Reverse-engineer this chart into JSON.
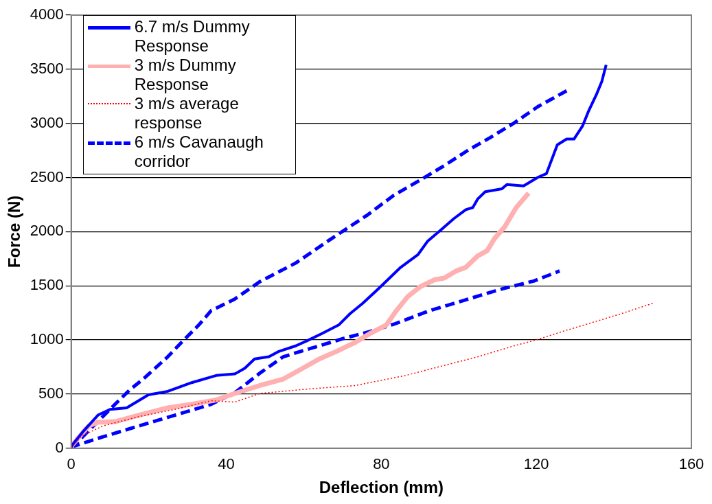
{
  "chart_data": {
    "type": "line",
    "xlabel": "Deflection (mm)",
    "ylabel": "Force (N)",
    "xlim": [
      0,
      160
    ],
    "xticks": [
      0,
      40,
      80,
      120,
      160
    ],
    "ylim": [
      0,
      4000
    ],
    "yticks": [
      0,
      500,
      1000,
      1500,
      2000,
      2500,
      3000,
      3500,
      4000
    ],
    "grid": "y",
    "legend": "top left",
    "marker": "none",
    "series": [
      {
        "name": "6.7 m/s Dummy Response",
        "color": "#0000ff",
        "line_style": "solid",
        "x": [
          0,
          0.2,
          3.2,
          6.9,
          10.0,
          14.3,
          19.9,
          24.9,
          31.1,
          37.4,
          42.2,
          44.8,
          47.3,
          51.0,
          53.4,
          57.9,
          60.8,
          64.6,
          69.0,
          72.0,
          75.2,
          79.4,
          85.0,
          89.5,
          91.9,
          95.6,
          98.8,
          101.8,
          103.6,
          104.9,
          106.8,
          111.1,
          112.4,
          116.7,
          120.4,
          122.6,
          125.4,
          127.8,
          129.7,
          131.9,
          133.4,
          135.6,
          136.9,
          138.0
        ],
        "values": [
          0,
          27,
          160,
          306,
          359,
          373,
          493,
          526,
          606,
          672,
          686,
          739,
          825,
          845,
          892,
          945,
          992,
          1058,
          1138,
          1245,
          1338,
          1478,
          1671,
          1790,
          1910,
          2023,
          2123,
          2203,
          2223,
          2303,
          2369,
          2396,
          2436,
          2423,
          2502,
          2536,
          2802,
          2855,
          2855,
          2975,
          3108,
          3275,
          3388,
          3541
        ]
      },
      {
        "name": "3 m/s Dummy Response",
        "color": "#ffb0b0",
        "line_style": "solid",
        "x": [
          0,
          0.2,
          4.5,
          6.9,
          11.3,
          17.5,
          24.9,
          31.1,
          37.4,
          42.2,
          48.6,
          54.7,
          58.4,
          64.0,
          68.3,
          73.3,
          77.0,
          81.3,
          83.9,
          86.9,
          90.0,
          93.8,
          96.2,
          99.3,
          101.8,
          104.9,
          107.3,
          109.2,
          111.8,
          114.8,
          118.0
        ],
        "values": [
          0,
          27,
          206,
          240,
          246,
          306,
          373,
          406,
          446,
          506,
          579,
          639,
          712,
          825,
          892,
          978,
          1058,
          1138,
          1271,
          1404,
          1491,
          1557,
          1571,
          1637,
          1671,
          1777,
          1824,
          1937,
          2043,
          2223,
          2356
        ]
      },
      {
        "name": "3 m/s average response",
        "color": "#ff0000",
        "line_style": "dotted",
        "x": [
          0,
          2.6,
          8.2,
          17.5,
          26.8,
          36.1,
          42.2,
          48.6,
          60.8,
          73.3,
          77.0,
          86.3,
          95.6,
          104.9,
          114.2,
          120.4,
          126.7,
          136.0,
          142.1,
          150.5
        ],
        "values": [
          0,
          113,
          206,
          293,
          359,
          439,
          426,
          506,
          546,
          579,
          606,
          672,
          759,
          845,
          945,
          1005,
          1078,
          1178,
          1245,
          1344
        ]
      },
      {
        "name": "6 m/s Cavanaugh corridor",
        "color": "#0000ff",
        "line_style": "dashed",
        "x": [
          0,
          11.3,
          15.1,
          18.8,
          24.9,
          29.2,
          32.9,
          36.1,
          42.2,
          48.6,
          57.9,
          67.2,
          76.5,
          83.2,
          90.0,
          96.2,
          102.5,
          108.1,
          114.2,
          120.4,
          127.8
        ],
        "values": [
          0,
          406,
          539,
          646,
          845,
          1005,
          1138,
          1271,
          1378,
          1537,
          1710,
          1937,
          2156,
          2336,
          2476,
          2609,
          2755,
          2869,
          3002,
          3155,
          3301
        ]
      },
      {
        "color": "#0000ff",
        "line_style": "dashed",
        "x": [
          0,
          0.2,
          8.2,
          17.5,
          26.8,
          36.1,
          42.2,
          48.6,
          54.7,
          60.8,
          70.1,
          77.0,
          83.2,
          92.5,
          101.8,
          111.1,
          119.3,
          126.0
        ],
        "values": [
          0,
          13,
          106,
          206,
          306,
          406,
          512,
          692,
          845,
          912,
          1012,
          1078,
          1145,
          1271,
          1371,
          1471,
          1544,
          1637
        ]
      }
    ]
  }
}
